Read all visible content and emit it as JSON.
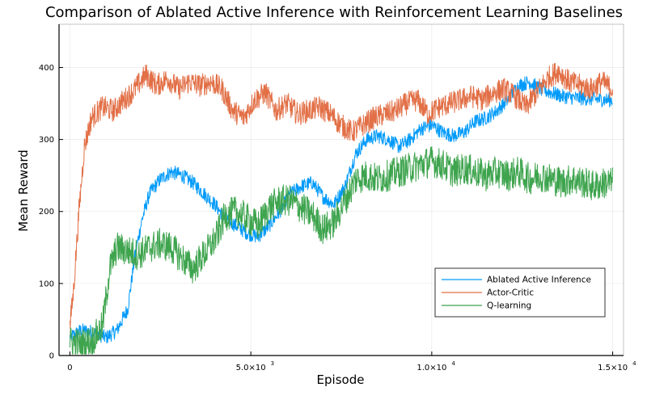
{
  "chart_data": {
    "type": "line",
    "title": "Comparison of Ablated Active Inference with Reinforcement Learning Baselines",
    "xlabel": "Episode",
    "ylabel": "Mean Reward",
    "xlim": [
      -300,
      15300
    ],
    "ylim": [
      0,
      460
    ],
    "x_ticks": [
      {
        "value": 0,
        "mantissa": "0",
        "exp": ""
      },
      {
        "value": 5000,
        "mantissa": "5.0×10",
        "exp": "3"
      },
      {
        "value": 10000,
        "mantissa": "1.0×10",
        "exp": "4"
      },
      {
        "value": 15000,
        "mantissa": "1.5×10",
        "exp": "4"
      }
    ],
    "y_ticks": [
      0,
      100,
      200,
      300,
      400
    ],
    "grid": true,
    "legend_position": "bottom-right",
    "series": [
      {
        "name": "Ablated Active Inference",
        "color": "#009AFA",
        "x": [
          0,
          300,
          600,
          1000,
          1300,
          1600,
          1800,
          2000,
          2200,
          2500,
          2800,
          3100,
          3400,
          3700,
          4000,
          4300,
          4600,
          4900,
          5200,
          5500,
          5800,
          6100,
          6400,
          6700,
          7000,
          7300,
          7600,
          7900,
          8200,
          8500,
          8800,
          9100,
          9400,
          9700,
          10000,
          10300,
          10600,
          10900,
          11200,
          11500,
          11800,
          12100,
          12400,
          12700,
          13000,
          13300,
          13600,
          13900,
          14200,
          14500,
          14800,
          15000
        ],
        "y": [
          25,
          35,
          33,
          25,
          35,
          65,
          140,
          190,
          225,
          245,
          255,
          250,
          240,
          225,
          210,
          190,
          180,
          170,
          165,
          180,
          200,
          225,
          235,
          240,
          220,
          210,
          235,
          280,
          300,
          305,
          300,
          290,
          300,
          315,
          320,
          310,
          305,
          310,
          325,
          330,
          340,
          355,
          375,
          380,
          370,
          365,
          360,
          358,
          357,
          356,
          355,
          355
        ],
        "noise": 10
      },
      {
        "name": "Actor-Critic",
        "color": "#E26F46",
        "x": [
          0,
          100,
          250,
          400,
          600,
          900,
          1200,
          1500,
          1800,
          2100,
          2400,
          2700,
          3000,
          3300,
          3600,
          3900,
          4200,
          4500,
          4800,
          5100,
          5400,
          5700,
          6000,
          6300,
          6600,
          6900,
          7200,
          7500,
          7800,
          8100,
          8400,
          8700,
          9000,
          9300,
          9600,
          9900,
          10200,
          10500,
          10800,
          11100,
          11400,
          11700,
          12000,
          12300,
          12600,
          12900,
          13200,
          13500,
          13800,
          14100,
          14400,
          14700,
          15000
        ],
        "y": [
          40,
          90,
          200,
          290,
          330,
          345,
          340,
          355,
          370,
          390,
          375,
          385,
          370,
          380,
          375,
          380,
          370,
          340,
          330,
          355,
          365,
          340,
          350,
          335,
          340,
          345,
          335,
          320,
          310,
          320,
          330,
          335,
          340,
          350,
          355,
          335,
          345,
          350,
          355,
          360,
          355,
          365,
          370,
          360,
          345,
          365,
          385,
          395,
          380,
          375,
          370,
          380,
          370
        ],
        "noise": 16
      },
      {
        "name": "Q-learning",
        "color": "#3EA44E",
        "x": [
          0,
          300,
          600,
          900,
          1100,
          1300,
          1600,
          1900,
          2200,
          2500,
          2800,
          3100,
          3400,
          3700,
          4000,
          4300,
          4600,
          4900,
          5200,
          5500,
          5800,
          6100,
          6400,
          6700,
          7000,
          7300,
          7600,
          7900,
          8200,
          8500,
          8800,
          9100,
          9400,
          9700,
          10000,
          10300,
          10600,
          10900,
          11200,
          11500,
          11800,
          12100,
          12400,
          12700,
          13000,
          13300,
          13600,
          13900,
          14200,
          14500,
          14800,
          15000
        ],
        "y": [
          20,
          15,
          20,
          40,
          120,
          150,
          145,
          140,
          150,
          155,
          150,
          135,
          120,
          140,
          160,
          195,
          200,
          190,
          180,
          205,
          215,
          215,
          205,
          195,
          175,
          185,
          215,
          245,
          250,
          245,
          250,
          255,
          260,
          265,
          270,
          265,
          255,
          260,
          255,
          250,
          255,
          250,
          255,
          245,
          250,
          245,
          240,
          245,
          240,
          235,
          240,
          240
        ],
        "noise": 22
      }
    ]
  }
}
